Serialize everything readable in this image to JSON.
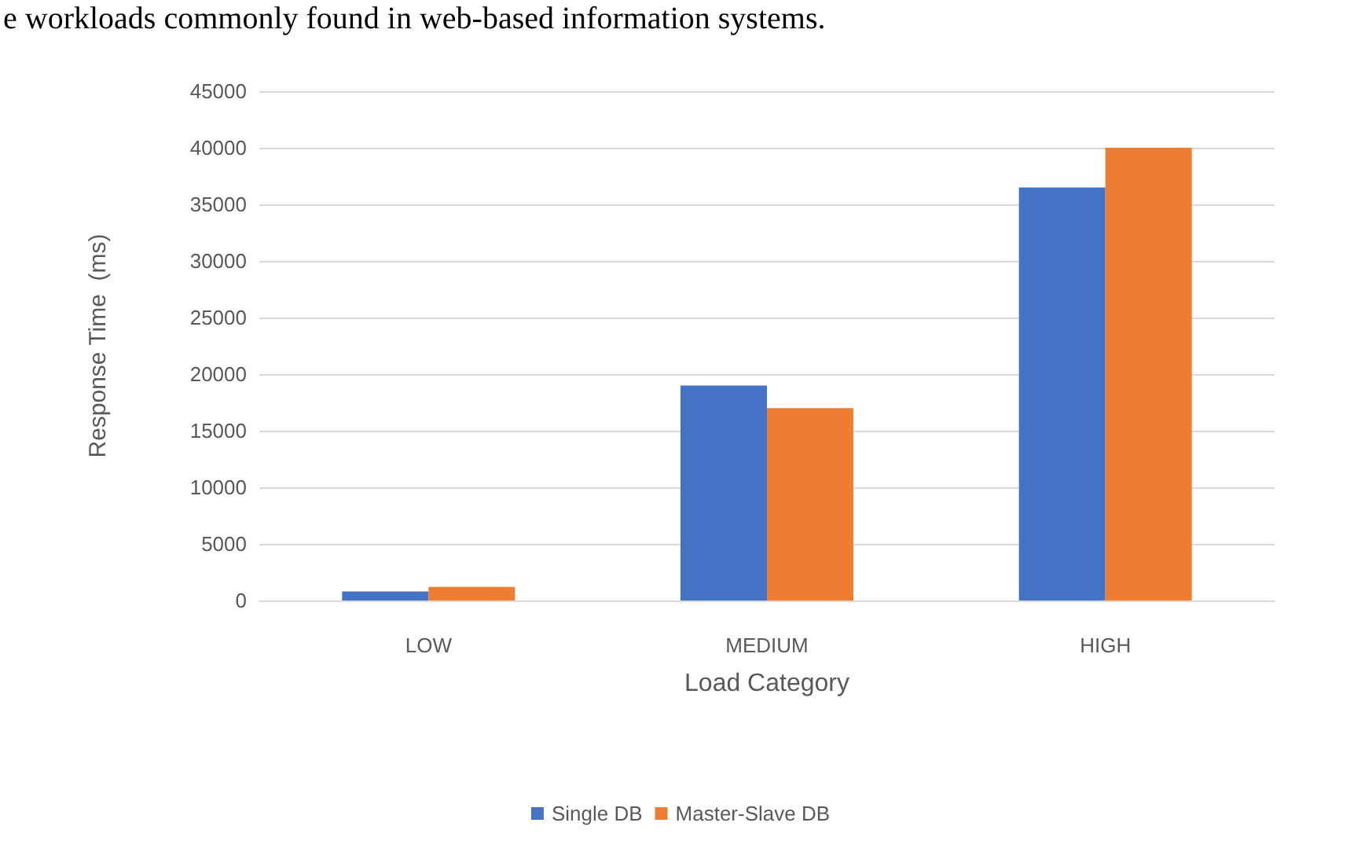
{
  "chart_data": {
    "type": "bar",
    "xlabel": "Load Category",
    "ylabel": "Response Time  (ms)",
    "annotations": [
      "e workloads commonly found in web-based information systems."
    ],
    "categories": [
      "LOW",
      "MEDIUM",
      "HIGH"
    ],
    "series": [
      {
        "name": "Single DB",
        "color": "#4472c4",
        "values": [
          800,
          19000,
          36500
        ]
      },
      {
        "name": "Master-Slave DB",
        "color": "#ed7d31",
        "values": [
          1200,
          17000,
          40000
        ]
      }
    ],
    "ylim": [
      0,
      45000
    ],
    "yticks": [
      0,
      5000,
      10000,
      15000,
      20000,
      25000,
      30000,
      35000,
      40000,
      45000
    ],
    "grid": "y",
    "legend": "bottom"
  }
}
